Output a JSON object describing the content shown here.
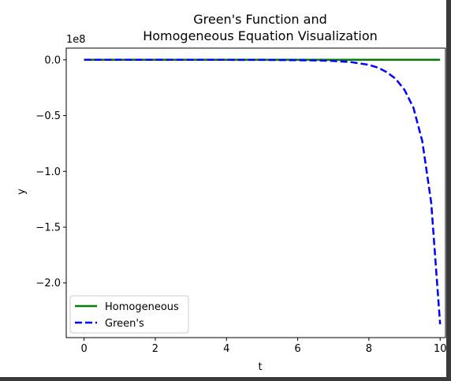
{
  "chart_data": {
    "type": "line",
    "title": [
      "Green's Function and",
      "Homogeneous Equation Visualization"
    ],
    "xlabel": "t",
    "ylabel": "y",
    "offset_text": "1e8",
    "xlim": [
      -0.5,
      10.15
    ],
    "ylim": [
      -2.49,
      0.105
    ],
    "xticks": [
      0,
      2,
      4,
      6,
      8,
      10
    ],
    "xtick_labels": [
      "0",
      "2",
      "4",
      "6",
      "8",
      "10"
    ],
    "yticks": [
      0.0,
      -0.5,
      -1.0,
      -1.5,
      -2.0
    ],
    "ytick_labels": [
      "0.0",
      "−0.5",
      "−1.0",
      "−1.5",
      "−2.0"
    ],
    "grid": false,
    "legend_position": "lower-left",
    "series": [
      {
        "name": "Homogeneous",
        "color": "#008000",
        "style": "solid",
        "x": [
          0,
          10
        ],
        "y": [
          0,
          0
        ]
      },
      {
        "name": "Green's",
        "color": "#0000ff",
        "style": "dashed",
        "x": [
          0,
          1,
          2,
          3,
          4,
          5,
          6,
          6.5,
          7,
          7.5,
          8,
          8.25,
          8.5,
          8.75,
          9,
          9.25,
          9.5,
          9.75,
          10
        ],
        "y": [
          0,
          0,
          0,
          0,
          0,
          -0.0006,
          -0.003,
          -0.005,
          -0.01,
          -0.02,
          -0.045,
          -0.07,
          -0.11,
          -0.17,
          -0.27,
          -0.43,
          -0.73,
          -1.28,
          -2.37
        ]
      }
    ]
  }
}
